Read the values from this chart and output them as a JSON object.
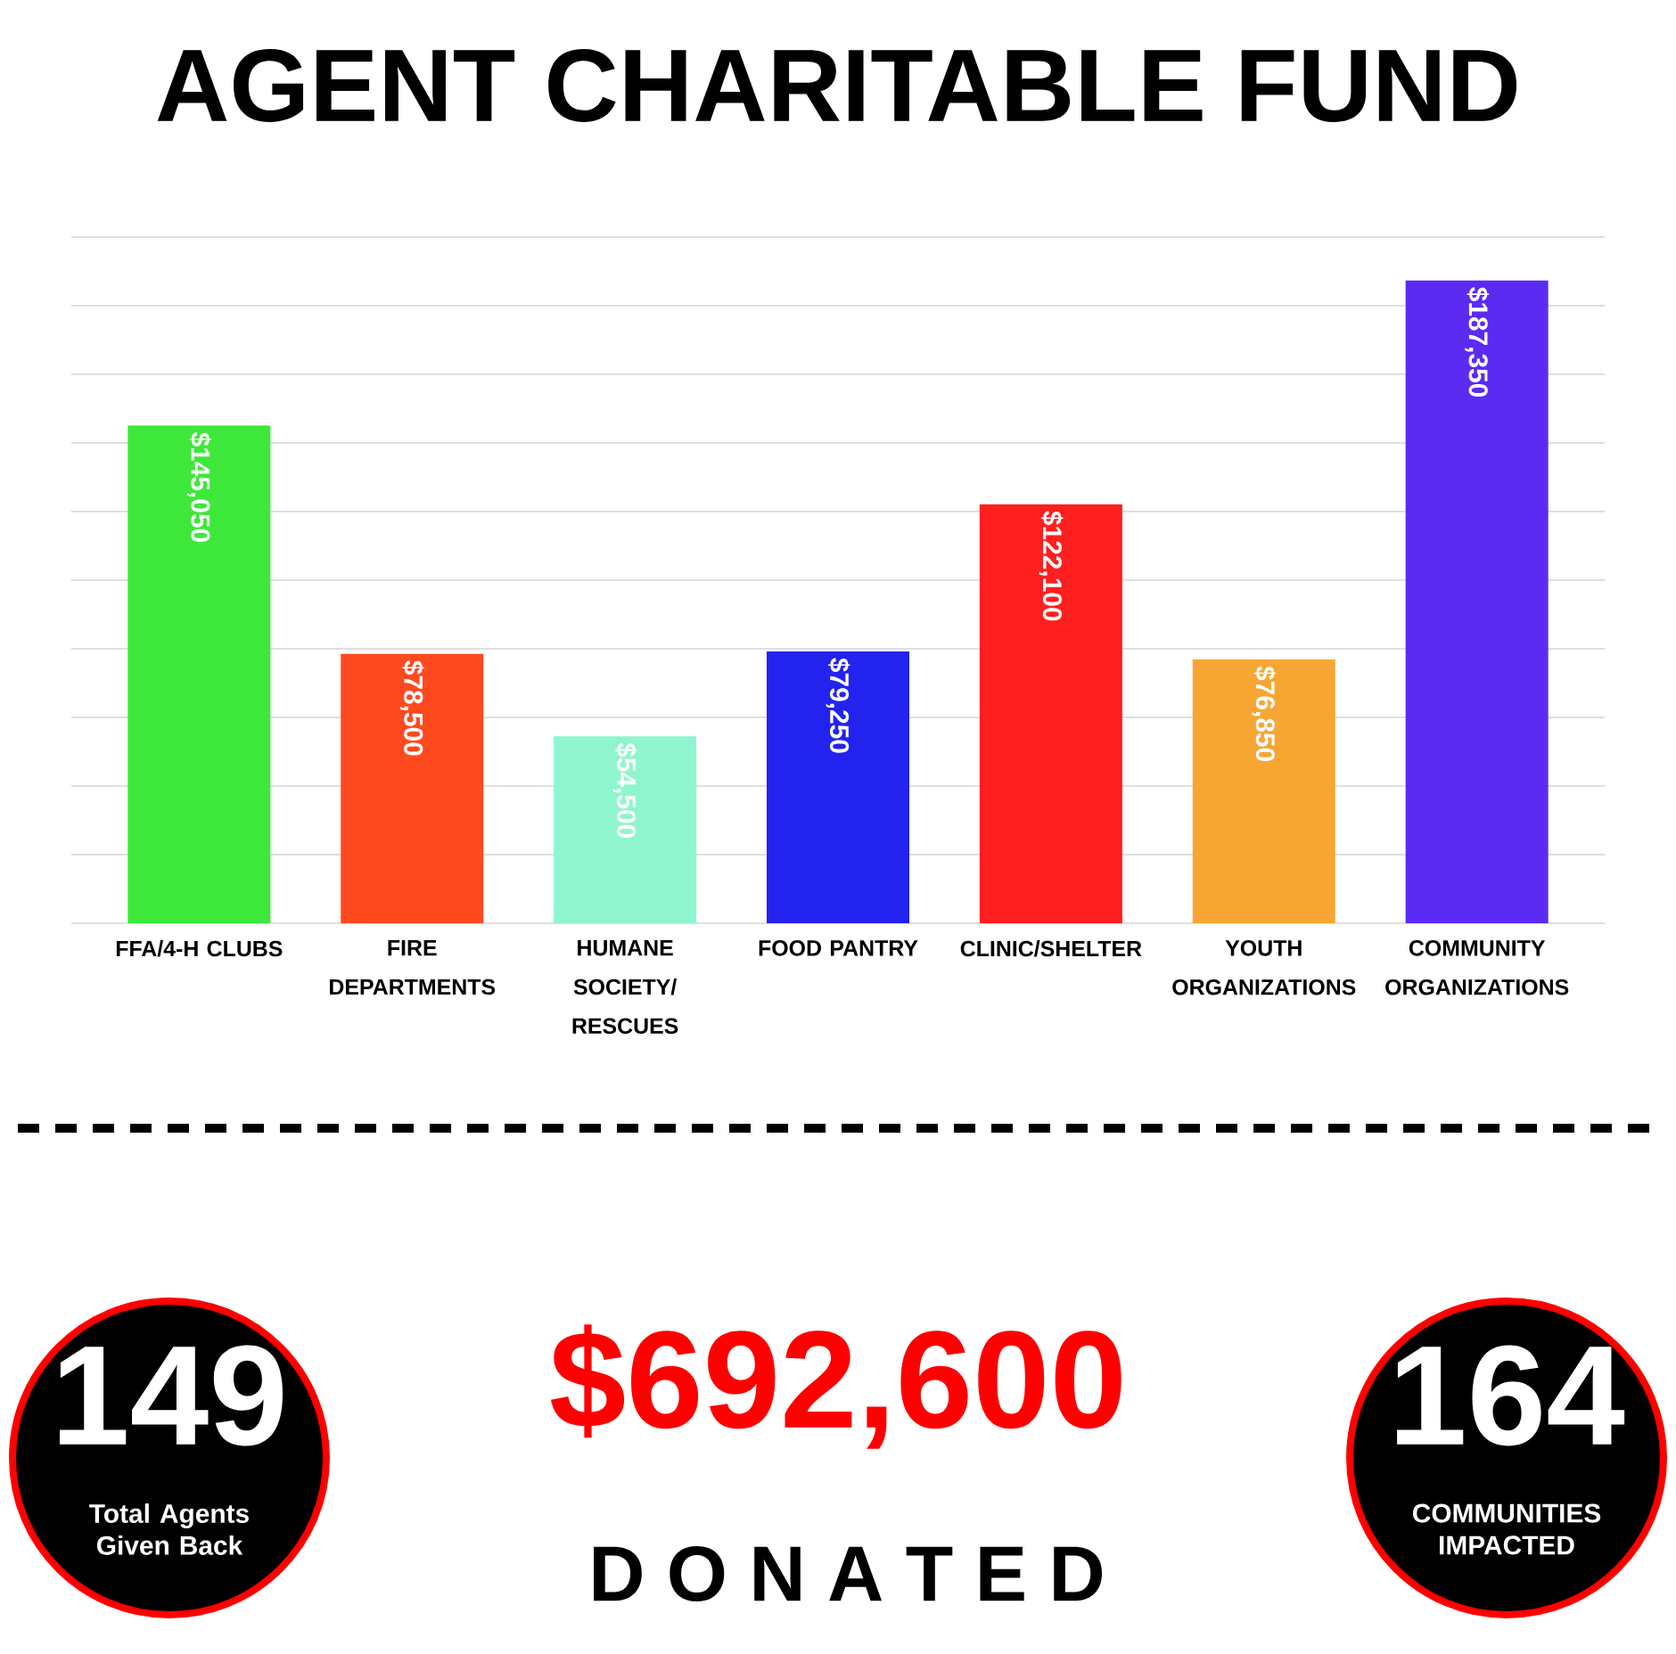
{
  "chart_data": {
    "type": "bar",
    "title": "AGENT CHARITABLE FUND",
    "categories": [
      "FFA/4-H CLUBS",
      "FIRE DEPARTMENTS",
      "HUMANE SOCIETY/ RESCUES",
      "FOOD PANTRY",
      "CLINIC/SHELTER",
      "YOUTH ORGANIZATIONS",
      "COMMUNITY ORGANIZATIONS"
    ],
    "values": [
      145050,
      78500,
      54500,
      79250,
      122100,
      76850,
      187350
    ],
    "value_labels": [
      "$145,050",
      "$78,500",
      "$54,500",
      "$79,250",
      "$122,100",
      "$76,850",
      "$187,350"
    ],
    "colors": [
      "#3ee83a",
      "#ff4a1f",
      "#8ff5cf",
      "#2323f0",
      "#ff1f1f",
      "#f7a634",
      "#5b2bf2"
    ],
    "ylim": [
      0,
      200000
    ],
    "yticks": [
      {
        "value": 0,
        "label": null
      },
      {
        "value": 20000,
        "label": null
      },
      {
        "value": 40000,
        "label": null
      },
      {
        "value": 60000,
        "label": null
      },
      {
        "value": 80000,
        "label": null
      },
      {
        "value": 100000,
        "label": null
      },
      {
        "value": 120000,
        "label": null
      },
      {
        "value": 140000,
        "label": null
      },
      {
        "value": 160000,
        "label": null
      },
      {
        "value": 180000,
        "label": null
      },
      {
        "value": 200000,
        "label": null
      }
    ],
    "grid": "y",
    "tick_labels": "x",
    "annotations": [
      "149",
      "Total Agents Given Back",
      "$692,600",
      "D O N A T E D",
      "164",
      "COMMUNITIES IMPACTED"
    ]
  }
}
